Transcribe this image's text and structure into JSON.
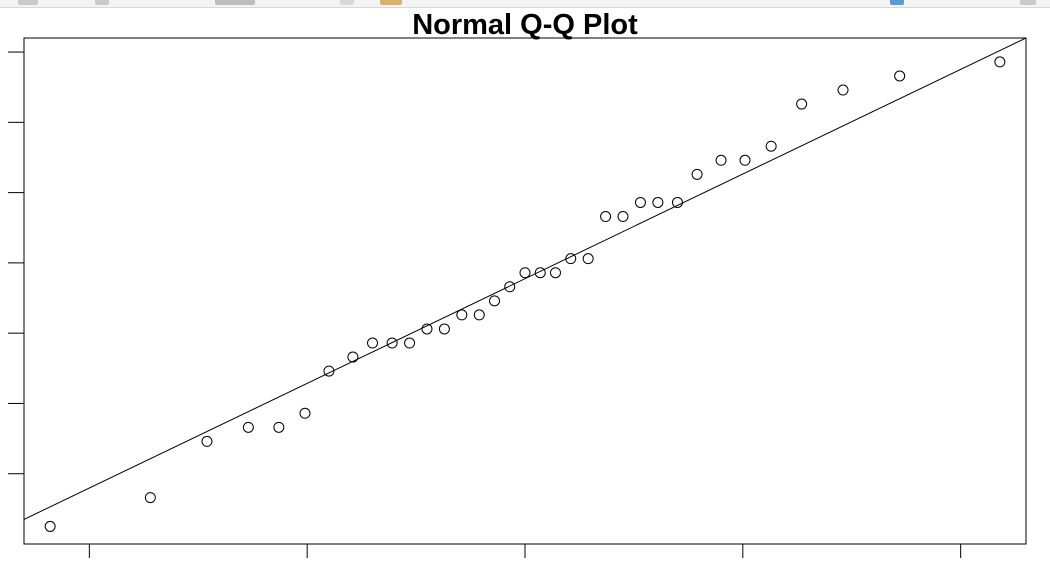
{
  "chart_data": {
    "type": "scatter",
    "title": "Normal Q-Q Plot",
    "xlabel": "",
    "ylabel": "",
    "xlim": [
      -2.3,
      2.3
    ],
    "ylim": [
      0.0,
      7.2
    ],
    "x_ticks": [
      -2,
      -1,
      0,
      1,
      2
    ],
    "y_ticks": [
      1,
      2,
      3,
      4,
      5,
      6,
      7
    ],
    "grid": false,
    "points": [
      {
        "x": -2.18,
        "y": 0.25
      },
      {
        "x": -1.72,
        "y": 0.66
      },
      {
        "x": -1.46,
        "y": 1.46
      },
      {
        "x": -1.27,
        "y": 1.66
      },
      {
        "x": -1.13,
        "y": 1.66
      },
      {
        "x": -1.01,
        "y": 1.86
      },
      {
        "x": -0.9,
        "y": 2.46
      },
      {
        "x": -0.79,
        "y": 2.66
      },
      {
        "x": -0.7,
        "y": 2.86
      },
      {
        "x": -0.61,
        "y": 2.86
      },
      {
        "x": -0.53,
        "y": 2.86
      },
      {
        "x": -0.45,
        "y": 3.06
      },
      {
        "x": -0.37,
        "y": 3.06
      },
      {
        "x": -0.29,
        "y": 3.26
      },
      {
        "x": -0.21,
        "y": 3.26
      },
      {
        "x": -0.14,
        "y": 3.46
      },
      {
        "x": -0.07,
        "y": 3.66
      },
      {
        "x": 0.0,
        "y": 3.86
      },
      {
        "x": 0.07,
        "y": 3.86
      },
      {
        "x": 0.14,
        "y": 3.86
      },
      {
        "x": 0.21,
        "y": 4.06
      },
      {
        "x": 0.29,
        "y": 4.06
      },
      {
        "x": 0.37,
        "y": 4.66
      },
      {
        "x": 0.45,
        "y": 4.66
      },
      {
        "x": 0.53,
        "y": 4.86
      },
      {
        "x": 0.61,
        "y": 4.86
      },
      {
        "x": 0.7,
        "y": 4.86
      },
      {
        "x": 0.79,
        "y": 5.26
      },
      {
        "x": 0.9,
        "y": 5.46
      },
      {
        "x": 1.01,
        "y": 5.46
      },
      {
        "x": 1.13,
        "y": 5.66
      },
      {
        "x": 1.27,
        "y": 6.26
      },
      {
        "x": 1.46,
        "y": 6.46
      },
      {
        "x": 1.72,
        "y": 6.66
      },
      {
        "x": 2.18,
        "y": 6.86
      }
    ],
    "reference_line": {
      "x1": -2.3,
      "y1": 0.35,
      "x2": 2.3,
      "y2": 7.2
    },
    "colors": {
      "points": "#000000",
      "line": "#000000",
      "frame": "#000000"
    }
  }
}
